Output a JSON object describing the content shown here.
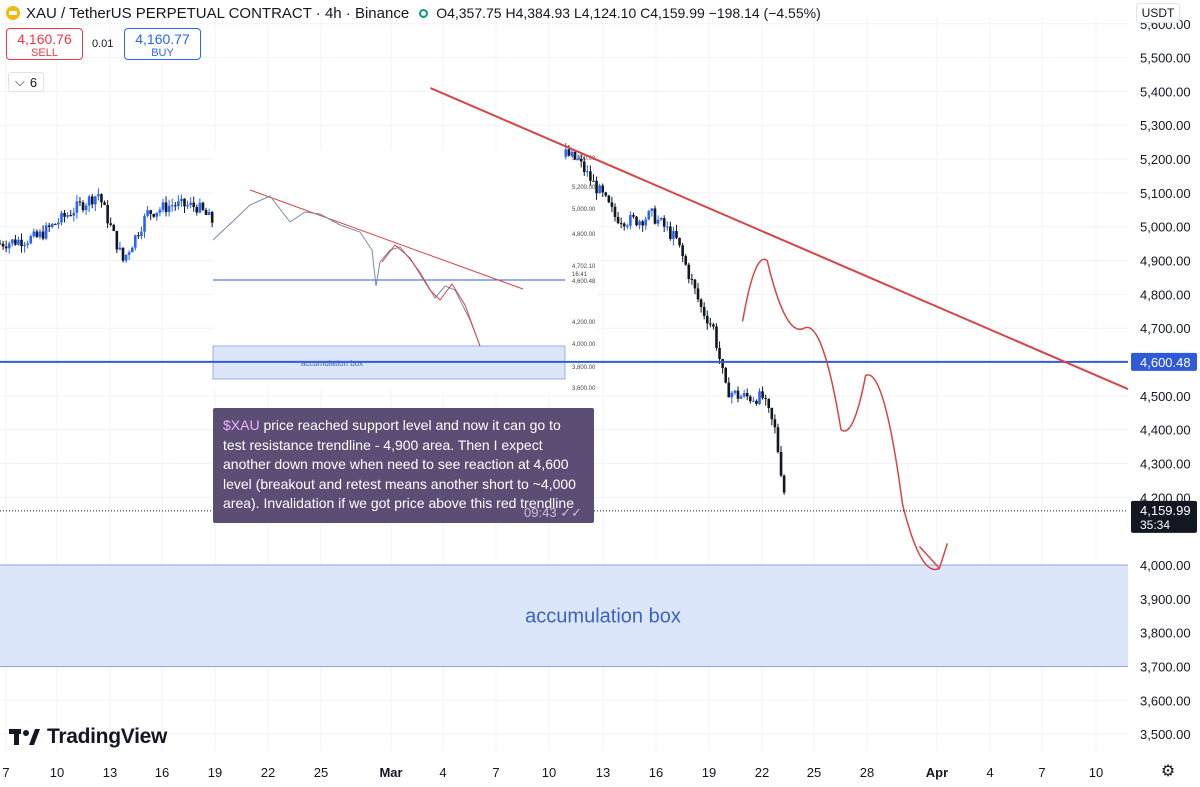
{
  "header": {
    "title": "XAU / TetherUS PERPETUAL CONTRACT · 4h · Binance",
    "open": "O4,357.75",
    "high": "H4,384.93",
    "low": "L4,124.10",
    "close": "C4,159.99",
    "change": "−198.14 (−4.55%)"
  },
  "trade": {
    "sell_price": "4,160.76",
    "sell_label": "SELL",
    "spread": "0.01",
    "buy_price": "4,160.77",
    "buy_label": "BUY"
  },
  "indicators": {
    "count": "6"
  },
  "currency": "USDT",
  "note": {
    "ticker": "$XAU",
    "text": "price reached support level and now it can go to test resistance trendline - 4,900 area. Then I expect another down move when need to see reaction at 4,600 level (breakout and retest means another short to ~4,000 area). Invalidation if we got price above this red trendline",
    "time": "09:43"
  },
  "brand": "TradingView",
  "colors": {
    "up": "#2962ff",
    "down": "#131722",
    "trendline": "#d64545",
    "hline": "#2f5bd8",
    "box_fill": "#dbe6fb",
    "box_text": "#3b63c4",
    "note_bg": "#5b4d74"
  },
  "chart_data": {
    "type": "candlestick",
    "symbol": "XAU / TetherUS PERPETUAL CONTRACT",
    "timeframe": "4h",
    "x_ticks": [
      "7",
      "10",
      "13",
      "16",
      "19",
      "22",
      "25",
      "Mar",
      "4",
      "7",
      "10",
      "13",
      "16",
      "19",
      "22",
      "25",
      "28",
      "Apr",
      "4",
      "7",
      "10"
    ],
    "y_ticks": [
      "5,600.00",
      "5,500.00",
      "5,400.00",
      "5,300.00",
      "5,200.00",
      "5,100.00",
      "5,000.00",
      "4,900.00",
      "4,800.00",
      "4,700.00",
      "4,500.00",
      "4,400.00",
      "4,300.00",
      "4,200.00",
      "4,000.00",
      "3,900.00",
      "3,800.00",
      "3,700.00",
      "3,600.00",
      "3,500.00"
    ],
    "ylim": [
      3450,
      5620
    ],
    "last_price": "4,159.99",
    "countdown": "35:34",
    "level_price": "4,600.48",
    "level_value": 4600.48,
    "price_path": [
      [
        0,
        4950
      ],
      [
        6,
        4968
      ],
      [
        12,
        5050
      ],
      [
        16,
        5098
      ],
      [
        20,
        4900
      ],
      [
        24,
        5040
      ],
      [
        28,
        5065
      ],
      [
        32,
        5060
      ],
      [
        36,
        4990
      ],
      [
        40,
        4870
      ],
      [
        44,
        4890
      ],
      [
        48,
        5000
      ],
      [
        52,
        5030
      ],
      [
        56,
        5120
      ],
      [
        60,
        5230
      ],
      [
        62,
        5155
      ],
      [
        64,
        5320
      ],
      [
        66,
        5305
      ],
      [
        68,
        5385
      ],
      [
        70,
        5400
      ],
      [
        72,
        5270
      ],
      [
        74,
        5040
      ],
      [
        76,
        5180
      ],
      [
        78,
        5160
      ],
      [
        80,
        5110
      ],
      [
        82,
        5175
      ],
      [
        84,
        5170
      ],
      [
        86,
        5155
      ],
      [
        88,
        5120
      ],
      [
        90,
        5180
      ],
      [
        92,
        5215
      ],
      [
        94,
        5195
      ],
      [
        96,
        5140
      ],
      [
        98,
        5090
      ],
      [
        100,
        5030
      ],
      [
        102,
        5018
      ],
      [
        104,
        5020
      ],
      [
        106,
        5035
      ],
      [
        108,
        5000
      ],
      [
        110,
        4960
      ],
      [
        112,
        4860
      ],
      [
        114,
        4760
      ],
      [
        116,
        4700
      ],
      [
        118,
        4520
      ],
      [
        120,
        4500
      ],
      [
        122,
        4495
      ],
      [
        124,
        4495
      ],
      [
        126,
        4400
      ],
      [
        128,
        4160
      ]
    ],
    "resistance_trendline": [
      [
        70,
        5410
      ],
      [
        150,
        4520
      ]
    ],
    "accumulation_box": {
      "low": 3700,
      "high": 4000,
      "label": "accumulation box"
    },
    "projection_path": [
      [
        124,
        4720
      ],
      [
        128,
        4900
      ],
      [
        134,
        4700
      ],
      [
        140,
        4400
      ],
      [
        144,
        4560
      ],
      [
        150,
        4180
      ],
      [
        156,
        3990
      ]
    ],
    "inset": {
      "y_ticks": [
        "5,400.00",
        "5,200.00",
        "5,000.00",
        "4,800.00",
        "4,702.10",
        "16:41",
        "4,600.48",
        "4,200.00",
        "4,000.00",
        "3,800.00",
        "3,600.00"
      ],
      "box_label": "accumulation box"
    }
  }
}
